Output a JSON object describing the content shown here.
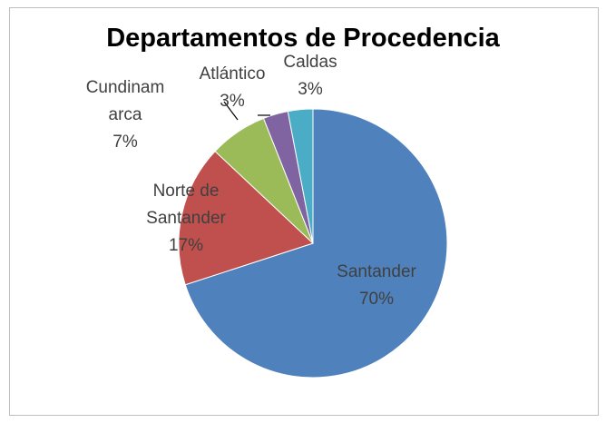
{
  "chart_data": {
    "type": "pie",
    "title": "Departamentos de Procedencia",
    "categories": [
      "Santander",
      "Norte de Santander",
      "Cundinamarca",
      "Atlántico",
      "Caldas"
    ],
    "values": [
      70,
      17,
      7,
      3,
      3
    ],
    "value_labels": [
      "70%",
      "17%",
      "7%",
      "3%",
      "3%"
    ],
    "colors": [
      "#4f81bd",
      "#c0504d",
      "#9bbb59",
      "#8064a2",
      "#4bacc6"
    ]
  }
}
